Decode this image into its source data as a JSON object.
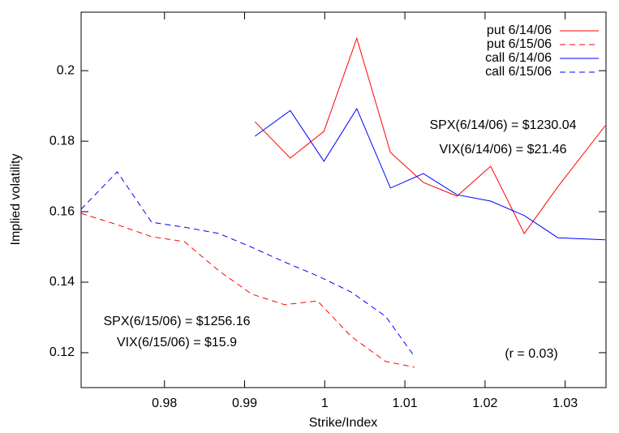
{
  "chart_data": {
    "type": "line",
    "x_label": "Strike/Index",
    "y_label": "Implied volatility",
    "xlim": [
      0.9696,
      1.0351
    ],
    "ylim": [
      0.1101,
      0.2166
    ],
    "xticks": [
      0.98,
      0.99,
      {
        "value": 1.0,
        "label": "1"
      },
      1.01,
      1.02,
      1.03
    ],
    "yticks": [
      0.12,
      0.14,
      0.16,
      0.18,
      {
        "value": 0.2,
        "label": "0.2"
      }
    ],
    "annotations": [
      "SPX(6/14/06) = $1230.04",
      "VIX(6/14/06) = $21.46",
      "SPX(6/15/06) = $1256.16",
      "VIX(6/15/06) = $15.9",
      "(r = 0.03)"
    ],
    "series": [
      {
        "name": "put 6/14/06",
        "color": "#ff0000",
        "dashed": false,
        "x": [
          0.9913,
          0.9957,
          0.9999,
          1.004,
          1.0082,
          1.0123,
          1.0165,
          1.0207,
          1.0249,
          1.0291,
          1.035
        ],
        "values": [
          0.1855,
          0.1752,
          0.1828,
          0.2092,
          0.1768,
          0.1683,
          0.1644,
          0.1729,
          0.1538,
          0.1671,
          0.1844
        ]
      },
      {
        "name": "put 6/15/06",
        "color": "#ff0000",
        "dashed": true,
        "x": [
          0.9696,
          0.9741,
          0.9784,
          0.9825,
          0.9868,
          0.9909,
          0.995,
          0.9991,
          1.0033,
          1.0076,
          1.0112
        ],
        "values": [
          0.1595,
          0.1563,
          0.1529,
          0.1515,
          0.1432,
          0.1366,
          0.1336,
          0.1347,
          0.1246,
          0.1175,
          0.1159
        ]
      },
      {
        "name": "call 6/14/06",
        "color": "#0000ff",
        "dashed": false,
        "x": [
          0.9913,
          0.9957,
          0.9999,
          1.004,
          1.0082,
          1.0123,
          1.0165,
          1.0207,
          1.0249,
          1.0291,
          1.035
        ],
        "values": [
          0.1814,
          0.1887,
          0.1743,
          0.1892,
          0.1667,
          0.1708,
          0.1648,
          0.163,
          0.1589,
          0.1526,
          0.152
        ]
      },
      {
        "name": "call 6/15/06",
        "color": "#0000ff",
        "dashed": true,
        "x": [
          0.9696,
          0.9741,
          0.9784,
          0.9825,
          0.9868,
          0.9909,
          0.995,
          0.9991,
          1.0033,
          1.0076,
          1.0112
        ],
        "values": [
          0.1607,
          0.1713,
          0.157,
          0.1556,
          0.1538,
          0.1499,
          0.1457,
          0.1418,
          0.1372,
          0.1303,
          0.1189
        ]
      }
    ]
  }
}
